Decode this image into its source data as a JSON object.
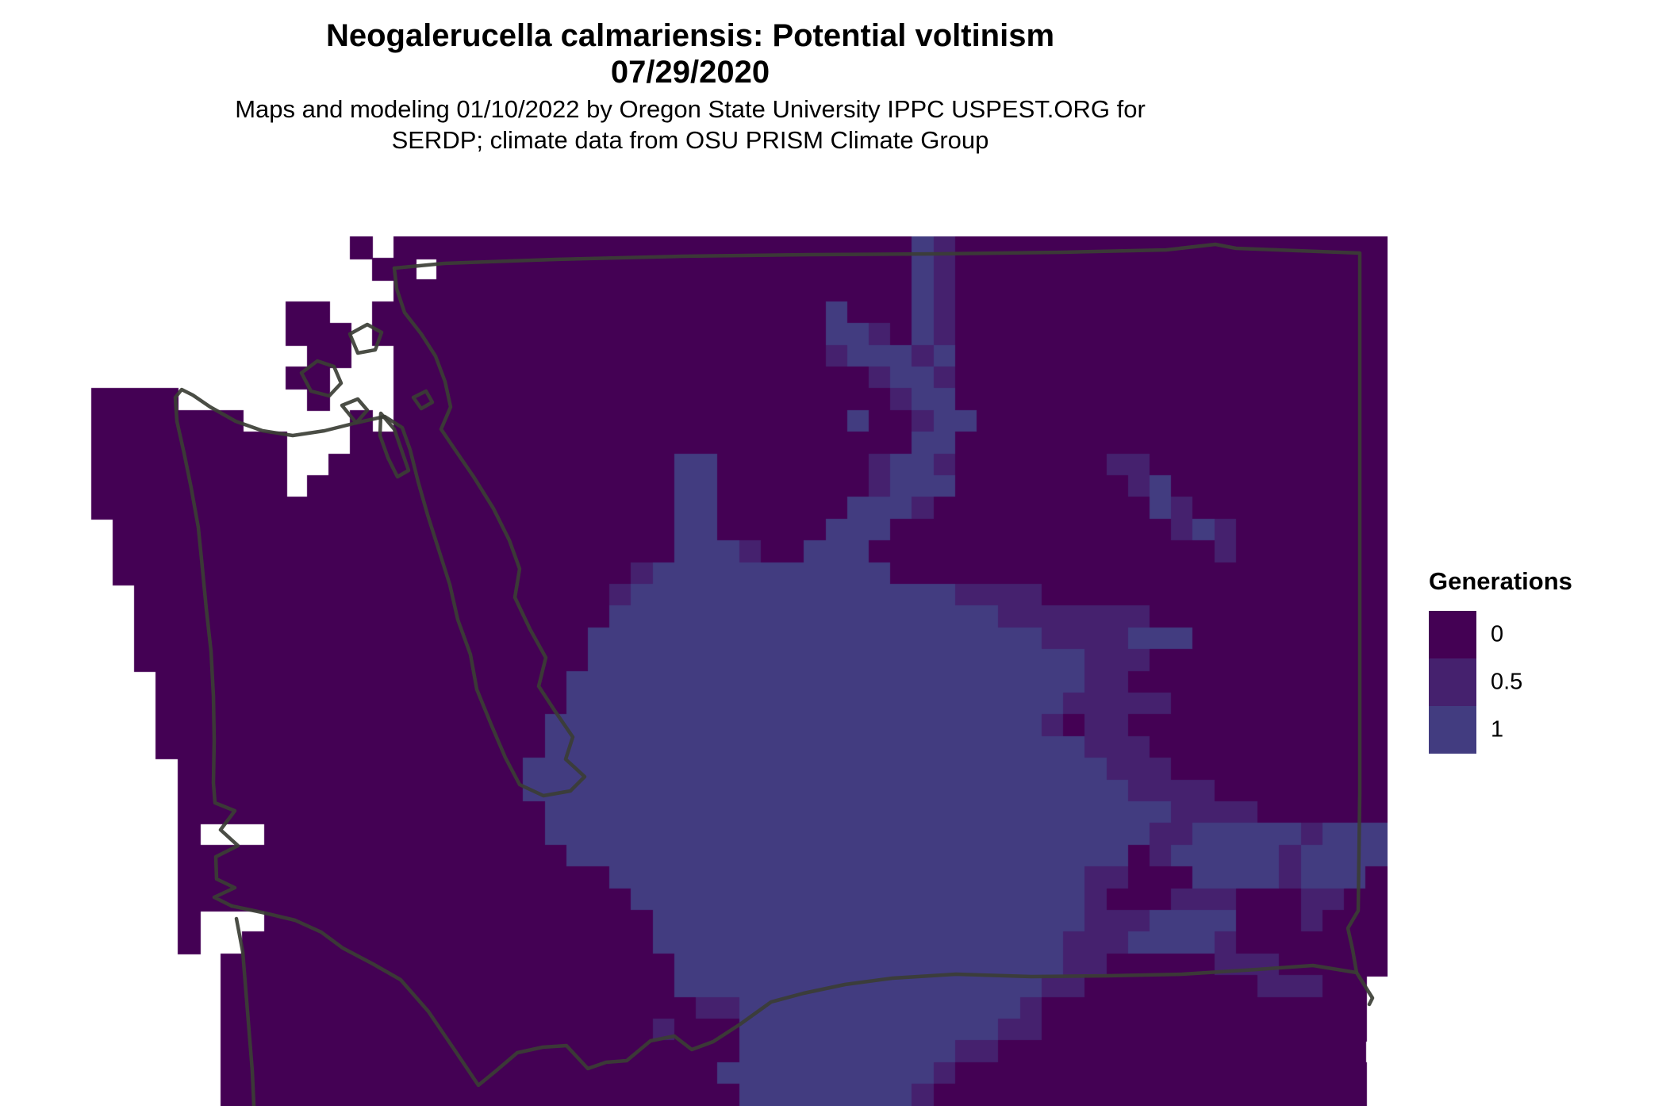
{
  "title": {
    "line1": "Neogalerucella calmariensis: Potential voltinism",
    "line2": "07/29/2020"
  },
  "subtitle": {
    "line1": "Maps and modeling 01/10/2022 by Oregon State University IPPC USPEST.ORG for",
    "line2": "SERDP; climate data from OSU PRISM Climate Group"
  },
  "legend": {
    "title": "Generations",
    "items": [
      {
        "label": "0",
        "color": "#440154"
      },
      {
        "label": "0.5",
        "color": "#45216e"
      },
      {
        "label": "1",
        "color": "#423c80"
      }
    ]
  },
  "chart_data": {
    "type": "heatmap",
    "title": "Neogalerucella calmariensis: Potential voltinism 07/29/2020",
    "legend_title": "Generations",
    "categories_legend": [
      "0",
      "0.5",
      "1"
    ],
    "region": "Washington State (raster of potential generations; white = no data / water)"
  },
  "map": {
    "no_data_color": "#ffffff",
    "border_color": "#3b3e35",
    "value_colors": {
      "a": "#440154",
      "b": "#45216e",
      "c": "#423c80"
    },
    "value_of_char": {
      "a": "0",
      "b": "0.5",
      "c": "1",
      ".": "no data"
    },
    "grid_cols": 61,
    "grid_rows": 40,
    "grid_rle": [
      "13. 1a 1. 24a 1c 1b 20a",
      "14. 2a 1. 22a 1c 1b 20a",
      "15. 24a 1c 1b 20a",
      "10. 2a 2. 21a 1c 3a 1c 1b 20a",
      "10. 3a 1. 21a 2c 1b 1a 1c 1b 20a",
      "11. 2a 2. 20a 1b 3c 1b 1c 20a",
      "10. 2a 3. 22a 1b 2c 1b 20a",
      "1. 4a 6. 1a 3. 23a 1b 2c 20a",
      "1. 7a 5. 1a 1. 21a 1c 2a 1b 2c 19a",
      "1. 9a 3. 26a 2c 20a",
      "1. 9a 2. 16a 2c 7a 1b 2c 1b 7a 2b 11a",
      "1. 9a 1. 17a 2c 7a 1b 3c 8a 1b 1c 10a",
      "1. 27a 2c 6a 3c 1b 10a 1c 1b 9a",
      "2. 26a 2c 5a 3c 13a 1b 1c 1b 7a",
      "2. 26a 3c 1b 2a 3c 16a 1b 7a",
      "2. 24a 1b 11c 23a",
      "3. 22a 1b 15c 4b 16a",
      "3. 22a 18c 7b 11a",
      "3. 21a 21c 4b 3c 9a",
      "3. 21a 23c 3b 11a",
      "4. 19a 24c 2b 12a",
      "4. 19a 23c 5b 10a",
      "4. 18a 23c 1b 1a 2b 12a",
      "4. 18a 25c 3b 11a",
      "5. 16a 27c 3b 10a",
      "5. 16a 28c 4b 8a",
      "5. 17a 29c 4b 6a",
      "5. 1a 3. 13a 28c 2b 5c 1b 3c",
      "5. 18a 26c 1a 1b 5c 1b 4c",
      "5. 20a 22c 2b 3a 4c 1b 3c 1a",
      "5. 21a 21c 1b 3a 3b 3a 2b 2a",
      "5. 1a 3. 18a 20c 3b 4c 3a 1b 3a",
      "5. 1a 2. 19a 19c 3b 4c 1b 7a",
      "7. 21a 18c 2b 5a 3b 5a",
      "7. 21a 17c 2b 8a 3b 2a 1.",
      "7. 22a 2b 13c 1b 15a 1.",
      "7. 20a 1b 3a 12c 2b 15a 1.",
      "7. 24a 10c 2b 17a 1.",
      "7. 23a 10c 1b 19a 1.",
      "7. 24a 8c 1b 20a 1."
    ],
    "border_paths": [
      "M 497 338 L 560 332 L 700 327 L 860 323 L 1020 321 L 1180 320 L 1340 318 L 1470 315 L 1532 308 L 1558 313 L 1714 319 L 1714 520 L 1714 760 L 1714 1000 L 1712 1148 L 1699 1170 L 1705 1197 L 1710 1226 L 1720 1242 L 1730 1258 L 1726 1266",
      "M 292 1142 L 330 1150 L 372 1160 L 405 1175 L 432 1195 L 470 1215 L 505 1235 L 540 1275 L 572 1322 L 603 1368 L 625 1350 L 652 1327 L 684 1320 L 714 1318 L 741 1347 L 764 1339 L 790 1337 L 820 1312 L 850 1306 L 872 1323 L 899 1313 L 933 1291 L 972 1263 L 1013 1252 L 1065 1241 L 1125 1233 L 1205 1228 L 1300 1231 L 1395 1230 L 1490 1228 L 1585 1222 L 1655 1217 L 1710 1226",
      "M 497 338 L 500 364 L 510 394 L 531 421 L 549 449 L 561 481 L 568 513 L 556 541 L 575 569 L 597 601 L 622 641 L 642 681 L 655 717 L 649 753 L 668 793 L 688 829 L 679 865 L 700 897 L 722 929 L 713 957 L 737 979 L 719 997 L 685 1003 L 655 989 L 637 955 L 619 913 L 601 869 L 593 825 L 577 781 L 567 737 L 553 693 L 539 649 L 527 607 L 517 567 L 507 539 L 485 525 L 449 533 L 409 543 L 369 549 L 331 543 L 297 531 L 265 513 L 243 498 L 229 491 L 221 501 L 223 531 L 232 571 L 241 615 L 250 665 L 255 715 L 260 767 L 266 821 L 269 877 L 270 933 L 269 987 L 271 1012 L 296 1022 L 278 1046 L 300 1066 L 272 1080 L 273 1108 L 296 1119 L 270 1131 L 292 1142",
      "M 298 1158 L 306 1200 L 310 1250 L 314 1300 L 318 1350 L 320 1394",
      "M 380 470 L 400 455 L 421 462 L 430 483 L 415 499 L 392 493 Z",
      "M 441 421 L 463 409 L 481 419 L 473 441 L 451 445 Z",
      "M 431 511 L 451 503 L 463 517 L 449 533 Z",
      "M 480 521 L 497 541 L 506 567 L 515 593 L 501 601 L 489 577 L 479 549 Z",
      "M 521 501 L 537 493 L 545 507 L 531 515 Z"
    ]
  }
}
